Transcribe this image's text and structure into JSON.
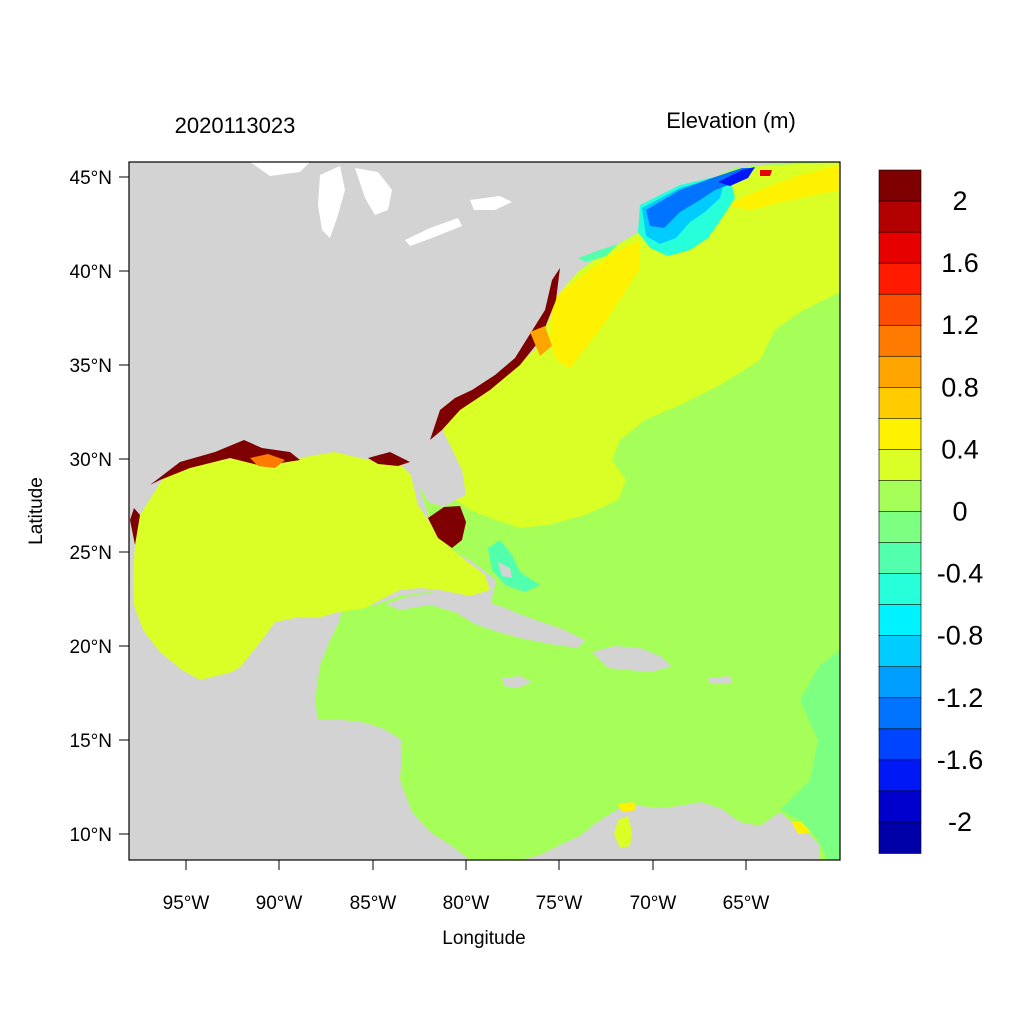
{
  "header": {
    "timestamp": "2020113023",
    "variable_title": "Elevation (m)"
  },
  "axes": {
    "xlabel": "Longitude",
    "ylabel": "Latitude",
    "x_ticks": [
      "95°W",
      "90°W",
      "85°W",
      "80°W",
      "75°W",
      "70°W",
      "65°W"
    ],
    "y_ticks": [
      "45°N",
      "40°N",
      "35°N",
      "30°N",
      "25°N",
      "20°N",
      "15°N",
      "10°N"
    ]
  },
  "colorbar": {
    "labels": [
      "2",
      "1.6",
      "1.2",
      "0.8",
      "0.4",
      "0",
      "-0.4",
      "-0.8",
      "-1.2",
      "-1.6",
      "-2"
    ],
    "colors": [
      "#7f0000",
      "#b30000",
      "#e60000",
      "#ff1a00",
      "#ff4d00",
      "#ff7a00",
      "#ffa500",
      "#ffcc00",
      "#fff200",
      "#d9ff26",
      "#a6ff59",
      "#7dff82",
      "#52ffad",
      "#26ffd9",
      "#00f2ff",
      "#00ccff",
      "#009fff",
      "#0073ff",
      "#0044ff",
      "#0018f5",
      "#0000cc",
      "#0000a8"
    ]
  },
  "legend_colors": {
    "land": "#d3d3d3",
    "lakes": "#ffffff",
    "basin_surge": "#d9ff26",
    "open_ocean": "#a6ff59",
    "coastal_high": "#7f0000",
    "gulf_of_maine_low": "#0073ff"
  }
}
